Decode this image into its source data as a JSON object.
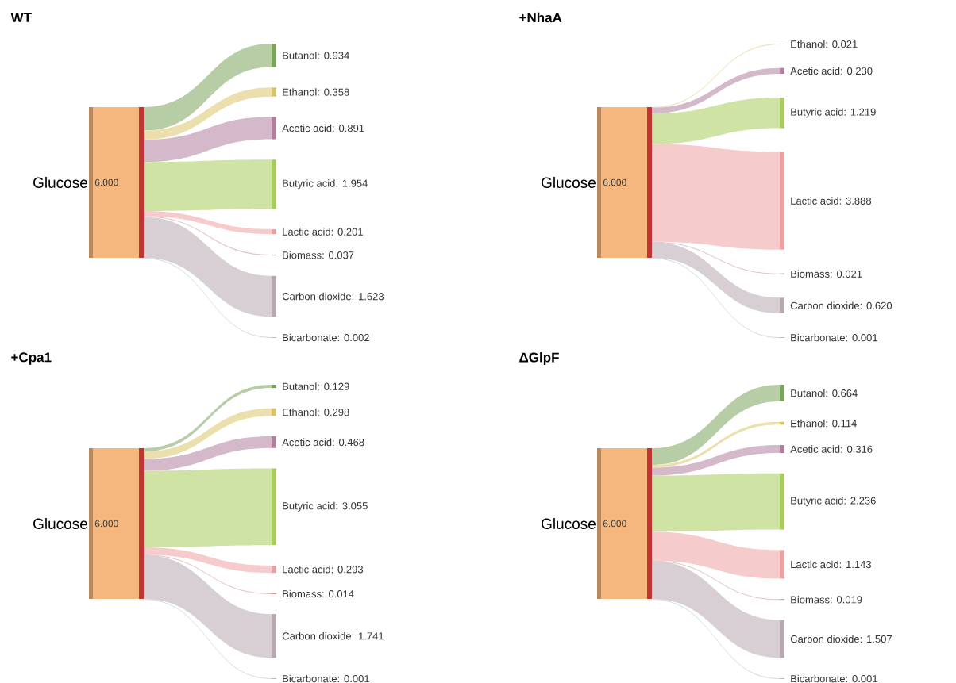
{
  "chart_data": [
    {
      "type": "other",
      "title": "WT",
      "categories": [
        "Glucose",
        "Butanol",
        "Ethanol",
        "Acetic acid",
        "Butyric acid",
        "Lactic acid",
        "Biomass",
        "Carbon dioxide",
        "Bicarbonate"
      ],
      "values": [
        6.0,
        0.934,
        0.358,
        0.891,
        1.954,
        0.201,
        0.037,
        1.623,
        0.002
      ],
      "value_labels": [
        "6.000",
        ": 0.934",
        ": 0.358",
        ": 0.891",
        ": 1.954",
        ": 0.201",
        ": 0.037",
        ": 1.623",
        ": 0.002"
      ],
      "colors": [
        "#f5b77e",
        "#7aa35c",
        "#d9c46a",
        "#b07f9e",
        "#a8cc5c",
        "#eca0a0",
        "#c89090",
        "#b8a8b0",
        "#a8c0d0"
      ]
    },
    {
      "type": "other",
      "title": "+NhaA",
      "categories": [
        "Glucose",
        "Ethanol",
        "Acetic acid",
        "Butyric acid",
        "Lactic acid",
        "Biomass",
        "Carbon dioxide",
        "Bicarbonate"
      ],
      "values": [
        6.0,
        0.021,
        0.23,
        1.219,
        3.888,
        0.021,
        0.62,
        0.001
      ],
      "value_labels": [
        "6.000",
        ": 0.021",
        ": 0.230",
        ": 1.219",
        ": 3.888",
        ": 0.021",
        ": 0.620",
        ": 0.001"
      ],
      "colors": [
        "#f5b77e",
        "#d9c46a",
        "#b07f9e",
        "#a8cc5c",
        "#eca0a0",
        "#c89090",
        "#b8a8b0",
        "#a8c0d0"
      ]
    },
    {
      "type": "other",
      "title": "+Cpa1",
      "categories": [
        "Glucose",
        "Butanol",
        "Ethanol",
        "Acetic acid",
        "Butyric acid",
        "Lactic acid",
        "Biomass",
        "Carbon dioxide",
        "Bicarbonate"
      ],
      "values": [
        6.0,
        0.129,
        0.298,
        0.468,
        3.055,
        0.293,
        0.014,
        1.741,
        0.001
      ],
      "value_labels": [
        "6.000",
        ": 0.129",
        ": 0.298",
        ": 0.468",
        ": 3.055",
        ": 0.293",
        ": 0.014",
        ": 1.741",
        ": 0.001"
      ],
      "colors": [
        "#f5b77e",
        "#7aa35c",
        "#d9c46a",
        "#b07f9e",
        "#a8cc5c",
        "#eca0a0",
        "#c89090",
        "#b8a8b0",
        "#a8c0d0"
      ]
    },
    {
      "type": "other",
      "title": "ΔGlpF",
      "categories": [
        "Glucose",
        "Butanol",
        "Ethanol",
        "Acetic acid",
        "Butyric acid",
        "Lactic acid",
        "Biomass",
        "Carbon dioxide",
        "Bicarbonate"
      ],
      "values": [
        6.0,
        0.664,
        0.114,
        0.316,
        2.236,
        1.143,
        0.019,
        1.507,
        0.001
      ],
      "value_labels": [
        "6.000",
        ": 0.664",
        ": 0.114",
        ": 0.316",
        ": 2.236",
        ": 1.143",
        ": 0.019",
        ": 1.507",
        ": 0.001"
      ],
      "colors": [
        "#f5b77e",
        "#7aa35c",
        "#d9c46a",
        "#b07f9e",
        "#a8cc5c",
        "#eca0a0",
        "#c89090",
        "#b8a8b0",
        "#a8c0d0"
      ]
    }
  ]
}
